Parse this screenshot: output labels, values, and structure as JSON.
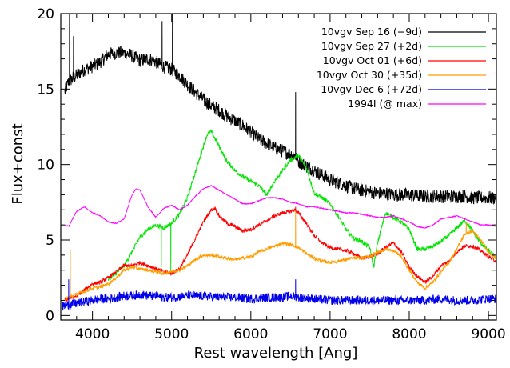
{
  "chart_data": {
    "type": "line",
    "xlabel": "Rest wavelength [Ang]",
    "ylabel": "Flux+const",
    "xlim": [
      3600,
      9100
    ],
    "ylim": [
      -0.3,
      20
    ],
    "x_ticks": [
      4000,
      5000,
      6000,
      7000,
      8000,
      9000
    ],
    "y_ticks": [
      0,
      5,
      10,
      15,
      20
    ],
    "legend_position": "top-right",
    "grid": false,
    "series": [
      {
        "name": "10vgv Sep 16 (−9d)",
        "color": "#000000",
        "x": [
          3650,
          3700,
          3800,
          3900,
          4000,
          4100,
          4200,
          4300,
          4400,
          4500,
          4600,
          4700,
          4800,
          4900,
          5000,
          5100,
          5200,
          5300,
          5400,
          5500,
          5600,
          5700,
          5800,
          5900,
          6000,
          6100,
          6200,
          6300,
          6400,
          6500,
          6560,
          6600,
          6700,
          6800,
          6900,
          7000,
          7100,
          7200,
          7300,
          7400,
          7500,
          7600,
          7700,
          7800,
          7900,
          8000,
          8100,
          8200,
          8300,
          8400,
          8500,
          8600,
          8700,
          8800,
          8900,
          9000,
          9100
        ],
        "y": [
          14.8,
          15.5,
          15.9,
          16.3,
          16.5,
          16.8,
          17.3,
          17.4,
          17.4,
          17.2,
          16.9,
          17.0,
          16.8,
          16.5,
          16.3,
          15.9,
          15.3,
          14.8,
          14.3,
          13.9,
          13.6,
          13.2,
          12.9,
          12.6,
          12.1,
          11.7,
          11.4,
          11.1,
          10.9,
          10.7,
          10.6,
          10.2,
          9.9,
          9.6,
          9.3,
          9.0,
          8.8,
          8.6,
          8.4,
          8.3,
          8.2,
          8.1,
          8.1,
          8.0,
          8.0,
          8.0,
          7.9,
          7.9,
          7.9,
          7.9,
          7.9,
          7.9,
          7.9,
          7.8,
          7.8,
          7.8,
          7.8
        ],
        "noise": 0.45,
        "spikes": [
          [
            3710,
            20.0
          ],
          [
            3760,
            18.5
          ],
          [
            4880,
            19.5
          ],
          [
            5010,
            20.0
          ],
          [
            6565,
            14.8
          ]
        ]
      },
      {
        "name": "10vgv Sep 27 (+2d)",
        "color": "#00e400",
        "x": [
          4200,
          4300,
          4400,
          4500,
          4600,
          4700,
          4800,
          4900,
          5000,
          5100,
          5200,
          5300,
          5400,
          5450,
          5500,
          5600,
          5700,
          5800,
          5900,
          6000,
          6100,
          6200,
          6300,
          6400,
          6500,
          6600,
          6700,
          6800,
          6900,
          7000,
          7100,
          7200,
          7300,
          7400,
          7500,
          7550,
          7600,
          7700,
          7800,
          7900,
          8000,
          8100,
          8200,
          8300,
          8400,
          8500,
          8600,
          8700,
          8800,
          8900,
          9000,
          9100
        ],
        "y": [
          2.4,
          2.8,
          3.3,
          4.2,
          5.2,
          5.7,
          6.0,
          5.8,
          6.1,
          6.7,
          7.8,
          9.5,
          11.2,
          12.0,
          12.2,
          11.2,
          10.2,
          9.6,
          9.2,
          8.9,
          8.6,
          8.0,
          8.9,
          9.6,
          10.3,
          10.6,
          9.8,
          8.1,
          7.8,
          7.4,
          6.6,
          5.7,
          5.1,
          4.9,
          4.5,
          3.2,
          4.8,
          6.8,
          6.5,
          6.2,
          5.7,
          4.4,
          4.4,
          4.6,
          4.9,
          5.3,
          5.8,
          6.3,
          5.6,
          4.8,
          4.3,
          3.8
        ],
        "noise": 0.14,
        "spikes": [
          [
            4870,
            3.2
          ],
          [
            4990,
            2.9
          ]
        ]
      },
      {
        "name": "10vgv Oct 01 (+6d)",
        "color": "#ff0000",
        "x": [
          3650,
          3800,
          3900,
          4000,
          4100,
          4200,
          4300,
          4400,
          4500,
          4600,
          4700,
          4800,
          4900,
          5000,
          5100,
          5200,
          5300,
          5400,
          5500,
          5550,
          5600,
          5700,
          5800,
          5900,
          6000,
          6100,
          6200,
          6300,
          6400,
          6500,
          6550,
          6600,
          6700,
          6800,
          6900,
          7000,
          7100,
          7200,
          7300,
          7400,
          7500,
          7600,
          7700,
          7800,
          7900,
          8000,
          8100,
          8200,
          8300,
          8400,
          8500,
          8600,
          8700,
          8800,
          8900,
          9000,
          9100
        ],
        "y": [
          1.0,
          1.3,
          1.7,
          2.1,
          2.2,
          2.5,
          2.9,
          3.3,
          3.3,
          3.5,
          3.3,
          3.1,
          2.9,
          2.8,
          3.1,
          4.0,
          5.1,
          6.2,
          7.0,
          7.1,
          6.6,
          6.1,
          5.9,
          5.6,
          5.7,
          6.0,
          6.3,
          6.6,
          6.8,
          6.9,
          7.0,
          6.8,
          6.1,
          5.3,
          4.8,
          4.5,
          4.4,
          4.3,
          4.1,
          3.8,
          3.9,
          4.1,
          4.5,
          4.8,
          4.2,
          3.2,
          2.6,
          2.2,
          2.6,
          3.3,
          3.6,
          4.2,
          4.6,
          4.6,
          4.3,
          3.9,
          3.6
        ],
        "noise": 0.12,
        "spikes": [
          [
            6565,
            7.2
          ]
        ]
      },
      {
        "name": "10vgv Oct 30 (+35d)",
        "color": "#ff9d00",
        "x": [
          3650,
          3800,
          3900,
          4000,
          4100,
          4200,
          4300,
          4400,
          4500,
          4600,
          4700,
          4800,
          4900,
          5000,
          5100,
          5200,
          5300,
          5400,
          5500,
          5600,
          5700,
          5800,
          5900,
          6000,
          6100,
          6200,
          6300,
          6400,
          6500,
          6600,
          6700,
          6800,
          6900,
          7000,
          7100,
          7200,
          7300,
          7400,
          7500,
          7600,
          7700,
          7800,
          7900,
          8000,
          8100,
          8200,
          8300,
          8400,
          8500,
          8600,
          8700,
          8800,
          8900,
          9000,
          9100
        ],
        "y": [
          1.1,
          1.4,
          1.6,
          1.8,
          1.9,
          2.1,
          2.5,
          3.0,
          3.2,
          3.1,
          3.0,
          2.9,
          2.8,
          2.9,
          3.0,
          3.3,
          3.7,
          4.0,
          4.0,
          3.9,
          3.8,
          3.7,
          3.8,
          3.9,
          4.2,
          4.4,
          4.6,
          4.8,
          4.7,
          4.5,
          4.1,
          3.8,
          3.6,
          3.5,
          3.6,
          3.7,
          3.8,
          3.8,
          3.9,
          4.2,
          4.4,
          4.3,
          3.9,
          3.0,
          2.2,
          1.8,
          2.2,
          2.9,
          3.5,
          4.4,
          5.4,
          5.6,
          5.0,
          4.2,
          3.8
        ],
        "noise": 0.11,
        "spikes": [
          [
            3720,
            4.3
          ],
          [
            6565,
            6.9
          ],
          [
            8720,
            6.2
          ]
        ]
      },
      {
        "name": "10vgv Dec 6 (+72d)",
        "color": "#0000e8",
        "x": [
          3620,
          3700,
          3800,
          3900,
          4000,
          4100,
          4200,
          4300,
          4400,
          4500,
          4600,
          4700,
          4800,
          4900,
          5000,
          5200,
          5400,
          5600,
          5800,
          6000,
          6200,
          6400,
          6500,
          6600,
          6800,
          7000,
          7200,
          7400,
          7600,
          7800,
          8000,
          8200,
          8400,
          8600,
          8800,
          9000,
          9100
        ],
        "y": [
          0.6,
          0.7,
          0.8,
          0.9,
          1.0,
          1.1,
          1.1,
          1.2,
          1.3,
          1.3,
          1.4,
          1.3,
          1.3,
          1.2,
          1.2,
          1.3,
          1.3,
          1.2,
          1.2,
          1.1,
          1.2,
          1.2,
          1.3,
          1.2,
          1.1,
          1.0,
          1.0,
          1.0,
          1.0,
          1.0,
          1.0,
          1.0,
          1.1,
          1.0,
          1.0,
          1.1,
          1.1
        ],
        "noise": 0.3,
        "spikes": [
          [
            3700,
            2.4
          ],
          [
            6565,
            2.4
          ]
        ]
      },
      {
        "name": "1994I (@ max)",
        "color": "#ff00ff",
        "x": [
          3650,
          3700,
          3800,
          3900,
          4000,
          4100,
          4200,
          4300,
          4400,
          4500,
          4550,
          4600,
          4700,
          4800,
          4900,
          5000,
          5100,
          5200,
          5300,
          5400,
          5500,
          5600,
          5700,
          5800,
          5900,
          6000,
          6100,
          6200,
          6300,
          6400,
          6500,
          6600,
          6700,
          6800,
          6900,
          7000,
          7100,
          7200,
          7300,
          7400,
          7500,
          7600,
          7700,
          7800,
          7900,
          8000,
          8100,
          8200,
          8300,
          8400,
          8500,
          8600,
          8700,
          8800,
          8900,
          9000,
          9100
        ],
        "y": [
          6.0,
          5.9,
          6.9,
          7.2,
          6.8,
          6.6,
          6.2,
          6.1,
          6.4,
          8.0,
          8.4,
          8.3,
          7.2,
          6.5,
          7.1,
          7.3,
          7.0,
          7.3,
          7.9,
          8.4,
          8.6,
          8.3,
          8.0,
          7.7,
          7.4,
          7.4,
          7.6,
          7.8,
          7.8,
          7.7,
          7.5,
          7.4,
          7.2,
          7.2,
          7.1,
          7.0,
          6.9,
          6.8,
          6.8,
          6.7,
          6.6,
          6.5,
          6.5,
          6.6,
          6.4,
          6.2,
          5.9,
          5.8,
          6.0,
          6.4,
          6.5,
          6.6,
          6.4,
          6.2,
          6.0,
          6.0,
          5.9
        ],
        "noise": 0.03,
        "spikes": []
      }
    ]
  }
}
